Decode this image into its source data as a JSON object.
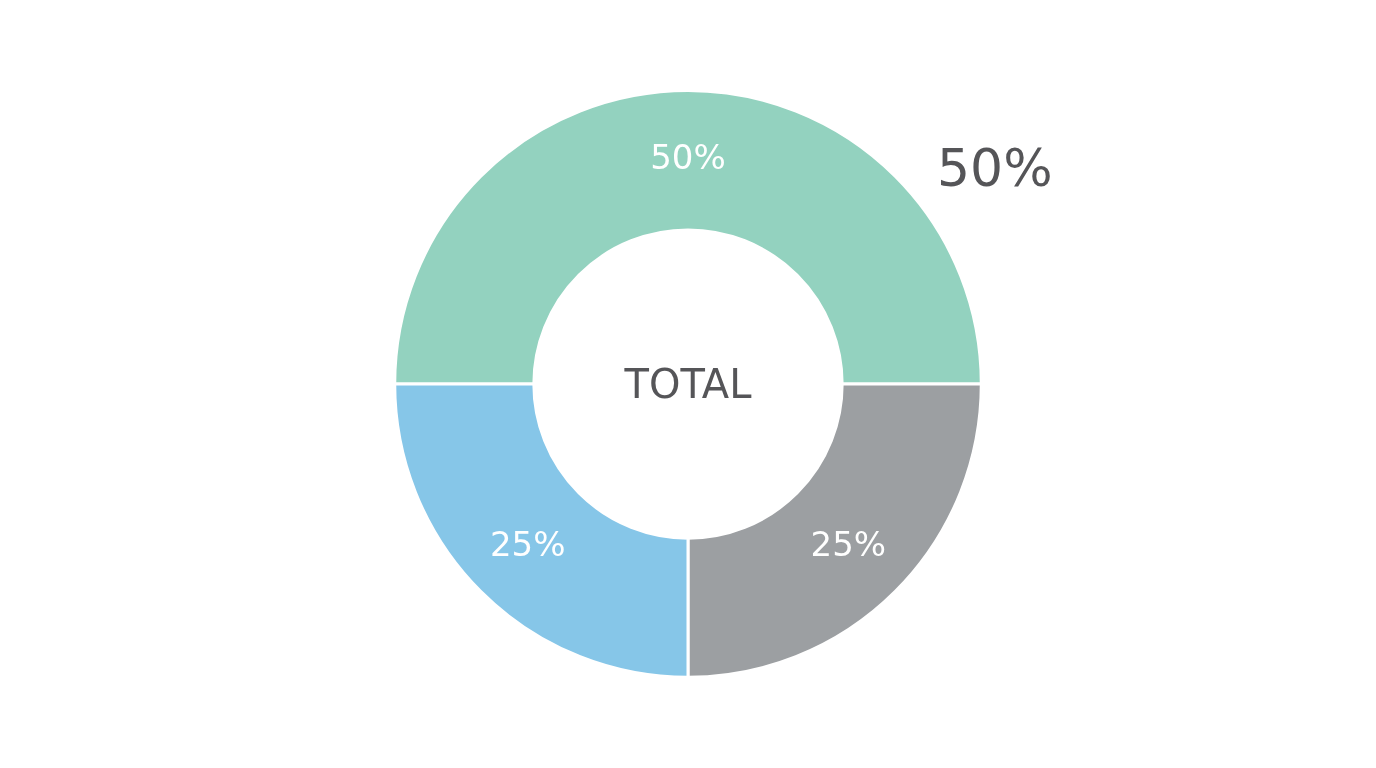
{
  "chart_data": {
    "type": "donut",
    "categories": [
      null,
      null,
      null
    ],
    "values": [
      50,
      25,
      25
    ],
    "colors": [
      "#93d2bf",
      "#9c9fa2",
      "#86c6e8"
    ],
    "value_labels": [
      "50%",
      "25%",
      "25%"
    ],
    "annotations": [
      "TOTAL",
      "50%"
    ]
  }
}
